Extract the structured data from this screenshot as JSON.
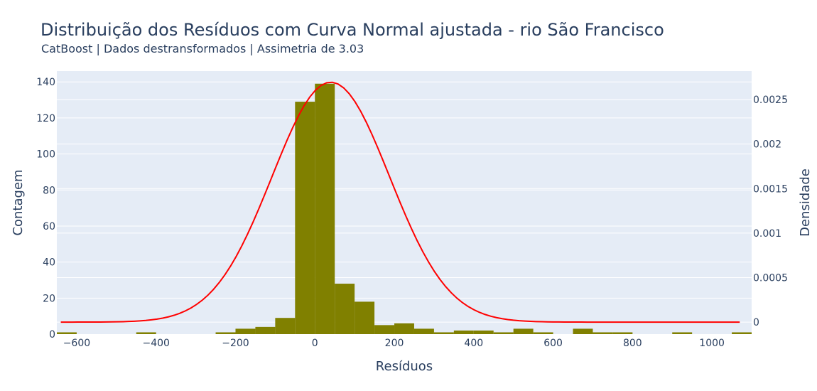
{
  "chart_data": {
    "type": "bar",
    "title": "Distribuição dos Resíduos com Curva Normal ajustada - rio São Francisco",
    "subtitle": "CatBoost | Dados destransformados | Assimetria de 3.03",
    "xlabel": "Resíduos",
    "ylabel": "Contagem",
    "y2label": "Densidade",
    "xlim": [
      -650,
      1100
    ],
    "ylim": [
      0,
      146
    ],
    "y2lim": [
      -0.000135,
      0.00282
    ],
    "x_ticks": [
      -600,
      -400,
      -200,
      0,
      200,
      400,
      600,
      800,
      1000
    ],
    "x_tick_labels": [
      "−600",
      "−400",
      "−200",
      "0",
      "200",
      "400",
      "600",
      "800",
      "1000"
    ],
    "y_ticks": [
      0,
      20,
      40,
      60,
      80,
      100,
      120,
      140
    ],
    "y_tick_labels": [
      "0",
      "20",
      "40",
      "60",
      "80",
      "100",
      "120",
      "140"
    ],
    "y2_ticks": [
      0,
      0.0005,
      0.001,
      0.0015,
      0.002,
      0.0025
    ],
    "y2_tick_labels": [
      "0",
      "0.0005",
      "0.001",
      "0.0015",
      "0.002",
      "0.0025"
    ],
    "bin_width": 50,
    "bin_starts": [
      -650,
      -450,
      -250,
      -200,
      -150,
      -100,
      -50,
      0,
      50,
      100,
      150,
      200,
      250,
      300,
      350,
      400,
      450,
      500,
      550,
      650,
      700,
      750,
      900,
      1050
    ],
    "counts": [
      1,
      1,
      1,
      3,
      4,
      9,
      129,
      139,
      28,
      18,
      5,
      6,
      3,
      1,
      2,
      2,
      1,
      3,
      1,
      3,
      1,
      1,
      1,
      1
    ],
    "histogram_color": "#808000",
    "normal_curve": {
      "mean": 40,
      "std": 148,
      "x_range": [
        -640,
        1070
      ],
      "color": "#ff0000"
    },
    "grid": true,
    "plot_background": "#e5ecf6"
  }
}
